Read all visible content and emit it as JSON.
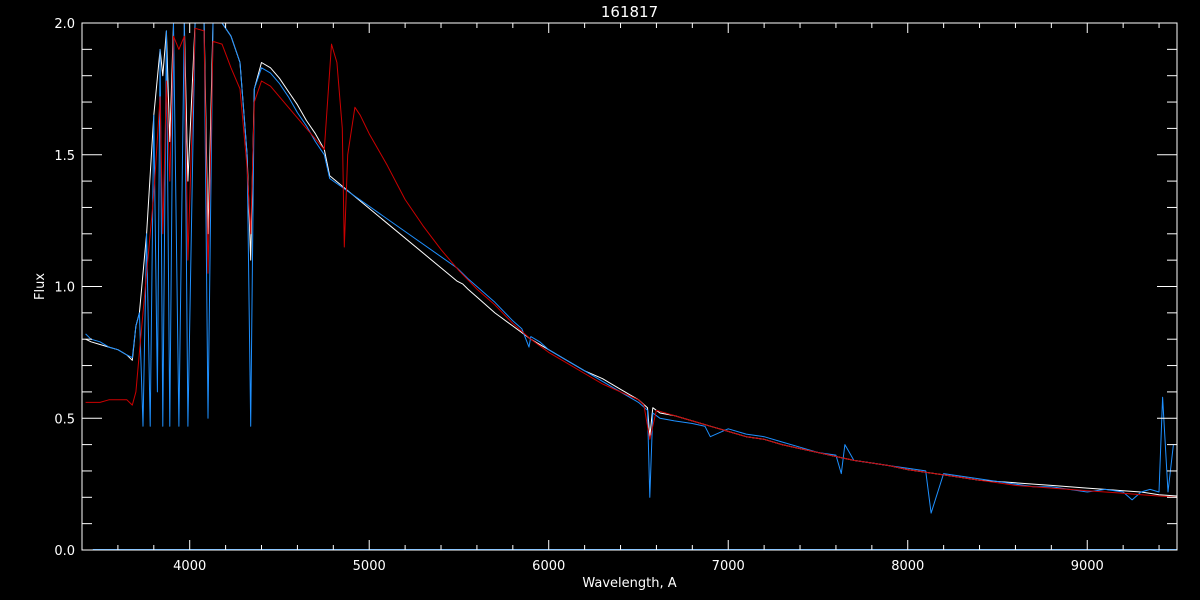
{
  "chart_data": {
    "type": "line",
    "title": "161817",
    "xlabel": "Wavelength, A",
    "ylabel": "Flux",
    "xlim": [
      3400,
      9500
    ],
    "ylim": [
      0.0,
      2.0
    ],
    "grid": false,
    "legend": "none",
    "x_major_ticks": [
      4000,
      5000,
      6000,
      7000,
      8000,
      9000
    ],
    "x_major_tick_labels": [
      "4000",
      "5000",
      "6000",
      "7000",
      "8000",
      "9000"
    ],
    "y_major_ticks": [
      0.0,
      0.5,
      1.0,
      1.5,
      2.0
    ],
    "y_major_tick_labels": [
      "0.0",
      "0.5",
      "1.0",
      "1.5",
      "2.0"
    ],
    "series": [
      {
        "color": "#ffffff",
        "role": "observed spectrum",
        "x": [
          3420,
          3450,
          3500,
          3550,
          3600,
          3650,
          3680,
          3700,
          3720,
          3760,
          3800,
          3835,
          3850,
          3870,
          3889,
          3910,
          3940,
          3970,
          3990,
          4030,
          4080,
          4102,
          4130,
          4180,
          4230,
          4280,
          4320,
          4340,
          4360,
          4400,
          4450,
          4500,
          4550,
          4600,
          4650,
          4700,
          4750,
          4780,
          5490,
          5520,
          5550,
          5600,
          5700,
          5800,
          5900,
          6000,
          6100,
          6200,
          6300,
          6400,
          6500,
          6550,
          6563,
          6580,
          6620,
          6700,
          6800,
          6900,
          7000,
          7100,
          7200,
          7300,
          7400,
          7500,
          7600,
          7700,
          7800,
          7900,
          8000,
          8100,
          8200,
          8300,
          8400,
          8500,
          8600,
          8700,
          8800,
          8900,
          9000,
          9100,
          9200,
          9300,
          9400,
          9500
        ],
        "y": [
          0.8,
          0.79,
          0.78,
          0.77,
          0.76,
          0.74,
          0.72,
          0.85,
          0.9,
          1.2,
          1.65,
          1.9,
          1.8,
          1.97,
          1.55,
          2.0,
          2.0,
          2.0,
          1.4,
          2.0,
          2.0,
          1.2,
          2.0,
          2.0,
          1.95,
          1.85,
          1.5,
          1.1,
          1.75,
          1.85,
          1.83,
          1.79,
          1.74,
          1.69,
          1.63,
          1.58,
          1.52,
          1.42,
          1.02,
          1.01,
          0.99,
          0.96,
          0.9,
          0.85,
          0.8,
          0.76,
          0.72,
          0.68,
          0.65,
          0.61,
          0.57,
          0.54,
          0.43,
          0.54,
          0.52,
          0.51,
          0.49,
          0.47,
          0.45,
          0.43,
          0.42,
          0.4,
          0.385,
          0.37,
          0.355,
          0.34,
          0.33,
          0.32,
          0.305,
          0.295,
          0.285,
          0.275,
          0.265,
          0.26,
          0.255,
          0.25,
          0.245,
          0.24,
          0.235,
          0.23,
          0.225,
          0.22,
          0.21,
          0.205
        ]
      },
      {
        "color": "#1e90ff",
        "role": "observed spectrum",
        "x": [
          3420,
          3450,
          3500,
          3550,
          3600,
          3650,
          3680,
          3700,
          3720,
          3740,
          3760,
          3780,
          3800,
          3820,
          3835,
          3850,
          3870,
          3889,
          3910,
          3940,
          3970,
          3990,
          4030,
          4080,
          4102,
          4130,
          4180,
          4230,
          4280,
          4320,
          4340,
          4360,
          4400,
          4450,
          4500,
          4550,
          4600,
          4650,
          4700,
          4750,
          4780,
          5490,
          5520,
          5550,
          5600,
          5700,
          5800,
          5850,
          5890,
          5900,
          5950,
          6000,
          6100,
          6200,
          6300,
          6400,
          6500,
          6550,
          6563,
          6580,
          6620,
          6700,
          6800,
          6870,
          6900,
          7000,
          7100,
          7200,
          7300,
          7400,
          7500,
          7600,
          7630,
          7650,
          7700,
          7800,
          7900,
          8000,
          8100,
          8130,
          8200,
          8300,
          8400,
          8500,
          8600,
          8700,
          8800,
          8900,
          9000,
          9100,
          9200,
          9250,
          9300,
          9350,
          9400,
          9420,
          9450,
          9480
        ],
        "y": [
          0.82,
          0.8,
          0.79,
          0.77,
          0.76,
          0.74,
          0.73,
          0.85,
          0.9,
          0.47,
          1.2,
          0.47,
          1.65,
          0.6,
          1.9,
          0.47,
          1.97,
          0.47,
          2.0,
          0.47,
          2.0,
          0.47,
          2.0,
          2.0,
          0.5,
          2.0,
          2.0,
          1.95,
          1.85,
          1.5,
          0.47,
          1.75,
          1.83,
          1.81,
          1.77,
          1.72,
          1.66,
          1.61,
          1.55,
          1.5,
          1.41,
          1.07,
          1.05,
          1.03,
          1.0,
          0.94,
          0.87,
          0.84,
          0.77,
          0.81,
          0.79,
          0.76,
          0.72,
          0.68,
          0.64,
          0.6,
          0.56,
          0.53,
          0.2,
          0.52,
          0.5,
          0.49,
          0.48,
          0.47,
          0.43,
          0.46,
          0.44,
          0.43,
          0.41,
          0.39,
          0.37,
          0.36,
          0.29,
          0.4,
          0.34,
          0.33,
          0.32,
          0.31,
          0.3,
          0.14,
          0.29,
          0.28,
          0.27,
          0.26,
          0.25,
          0.24,
          0.24,
          0.23,
          0.22,
          0.23,
          0.22,
          0.19,
          0.22,
          0.23,
          0.22,
          0.58,
          0.22,
          0.4
        ]
      },
      {
        "color": "#cc0000",
        "role": "model spectrum",
        "x": [
          3420,
          3500,
          3550,
          3600,
          3650,
          3680,
          3700,
          3720,
          3760,
          3800,
          3835,
          3850,
          3870,
          3889,
          3910,
          3940,
          3970,
          3990,
          4030,
          4080,
          4102,
          4130,
          4180,
          4230,
          4280,
          4320,
          4340,
          4360,
          4400,
          4450,
          4500,
          4550,
          4600,
          4650,
          4700,
          4750,
          4790,
          4820,
          4850,
          4861,
          4880,
          4920,
          4950,
          5000,
          5100,
          5200,
          5300,
          5400,
          5500,
          5600,
          5700,
          5800,
          5900,
          6000,
          6100,
          6200,
          6300,
          6400,
          6500,
          6530,
          6563,
          6600,
          6650,
          6700,
          6800,
          6900,
          7000,
          7100,
          7200,
          7300,
          7400,
          7500,
          7600,
          7700,
          7800,
          7900,
          8000,
          8100,
          8200,
          8300,
          8400,
          8500,
          8600,
          8700,
          8800,
          8900,
          9000,
          9100,
          9200,
          9300,
          9400,
          9500
        ],
        "y": [
          0.56,
          0.56,
          0.57,
          0.57,
          0.57,
          0.55,
          0.6,
          0.75,
          1.05,
          1.35,
          1.72,
          1.2,
          1.78,
          1.4,
          1.95,
          1.9,
          1.95,
          1.1,
          1.98,
          1.97,
          1.05,
          1.93,
          1.92,
          1.83,
          1.75,
          1.45,
          1.2,
          1.7,
          1.78,
          1.76,
          1.72,
          1.68,
          1.64,
          1.6,
          1.56,
          1.52,
          1.92,
          1.85,
          1.6,
          1.15,
          1.5,
          1.68,
          1.65,
          1.58,
          1.46,
          1.33,
          1.23,
          1.14,
          1.06,
          0.99,
          0.93,
          0.86,
          0.8,
          0.75,
          0.71,
          0.67,
          0.63,
          0.6,
          0.57,
          0.55,
          0.42,
          0.53,
          0.52,
          0.51,
          0.49,
          0.47,
          0.45,
          0.43,
          0.42,
          0.4,
          0.385,
          0.37,
          0.355,
          0.34,
          0.33,
          0.32,
          0.305,
          0.295,
          0.285,
          0.275,
          0.265,
          0.255,
          0.245,
          0.24,
          0.235,
          0.23,
          0.225,
          0.22,
          0.215,
          0.21,
          0.205,
          0.2
        ]
      },
      {
        "color": "#1e90ff",
        "role": "near-zero baseline",
        "x": [
          3460,
          9500
        ],
        "y": [
          0.002,
          0.002
        ]
      }
    ]
  }
}
